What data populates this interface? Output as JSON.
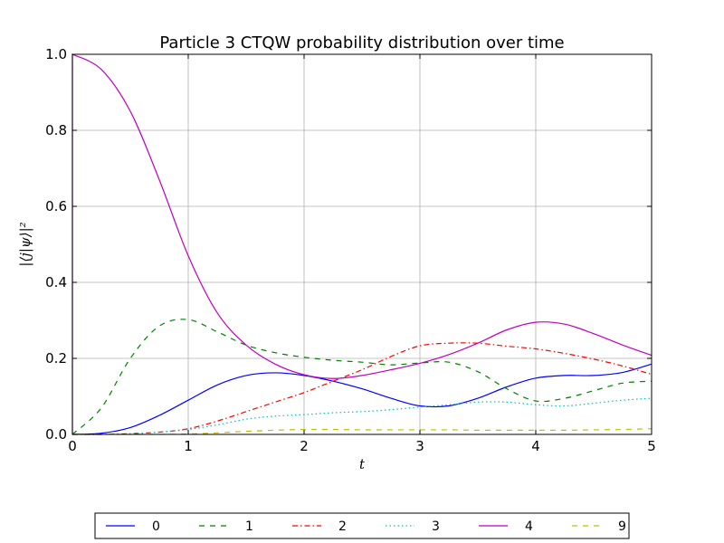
{
  "chart_data": {
    "type": "line",
    "title": "Particle 3 CTQW probability distribution over time",
    "xlabel": "t",
    "ylabel": "|⟨j|ψ⟩|²",
    "xlim": [
      0,
      5
    ],
    "ylim": [
      0,
      1.0
    ],
    "x_ticks": [
      "0",
      "1",
      "2",
      "3",
      "4",
      "5"
    ],
    "y_ticks": [
      "0.0",
      "0.2",
      "0.4",
      "0.6",
      "0.8",
      "1.0"
    ],
    "grid": true,
    "legend_placement": "bottom-center-below-plot",
    "x": [
      0,
      0.25,
      0.5,
      0.75,
      1.0,
      1.25,
      1.5,
      1.75,
      2.0,
      2.25,
      2.5,
      2.75,
      3.0,
      3.25,
      3.5,
      3.75,
      4.0,
      4.25,
      4.5,
      4.75,
      5.0
    ],
    "series": [
      {
        "name": "0",
        "color": "#0000ff",
        "dash": "solid",
        "values": [
          0.0,
          0.003,
          0.018,
          0.05,
          0.09,
          0.13,
          0.155,
          0.162,
          0.155,
          0.14,
          0.12,
          0.095,
          0.075,
          0.075,
          0.095,
          0.125,
          0.148,
          0.155,
          0.155,
          0.163,
          0.185
        ]
      },
      {
        "name": "1",
        "color": "#008000",
        "dash": "dashed",
        "values": [
          0.0,
          0.07,
          0.2,
          0.285,
          0.302,
          0.27,
          0.235,
          0.215,
          0.203,
          0.195,
          0.19,
          0.183,
          0.188,
          0.19,
          0.165,
          0.12,
          0.088,
          0.095,
          0.115,
          0.135,
          0.14
        ]
      },
      {
        "name": "2",
        "color": "#ff0000",
        "dash": "dashdot",
        "values": [
          0.0,
          0.0,
          0.002,
          0.006,
          0.015,
          0.035,
          0.06,
          0.085,
          0.11,
          0.14,
          0.17,
          0.205,
          0.233,
          0.24,
          0.24,
          0.232,
          0.225,
          0.213,
          0.198,
          0.18,
          0.158
        ]
      },
      {
        "name": "3",
        "color": "#00bfbf",
        "dash": "dotted",
        "values": [
          0.0,
          0.0,
          0.002,
          0.006,
          0.013,
          0.025,
          0.04,
          0.048,
          0.052,
          0.057,
          0.06,
          0.065,
          0.072,
          0.078,
          0.085,
          0.085,
          0.078,
          0.075,
          0.082,
          0.09,
          0.095
        ]
      },
      {
        "name": "4",
        "color": "#bf00bf",
        "dash": "solid",
        "values": [
          1.0,
          0.96,
          0.85,
          0.67,
          0.47,
          0.32,
          0.235,
          0.185,
          0.157,
          0.147,
          0.155,
          0.17,
          0.187,
          0.21,
          0.24,
          0.275,
          0.295,
          0.29,
          0.265,
          0.235,
          0.208
        ]
      },
      {
        "name": "9",
        "color": "#bfbf00",
        "dash": "dashed",
        "values": [
          0.0,
          0.0,
          0.0,
          0.0,
          0.001,
          0.004,
          0.008,
          0.011,
          0.013,
          0.013,
          0.012,
          0.012,
          0.012,
          0.012,
          0.011,
          0.011,
          0.011,
          0.011,
          0.012,
          0.013,
          0.015
        ]
      }
    ]
  }
}
